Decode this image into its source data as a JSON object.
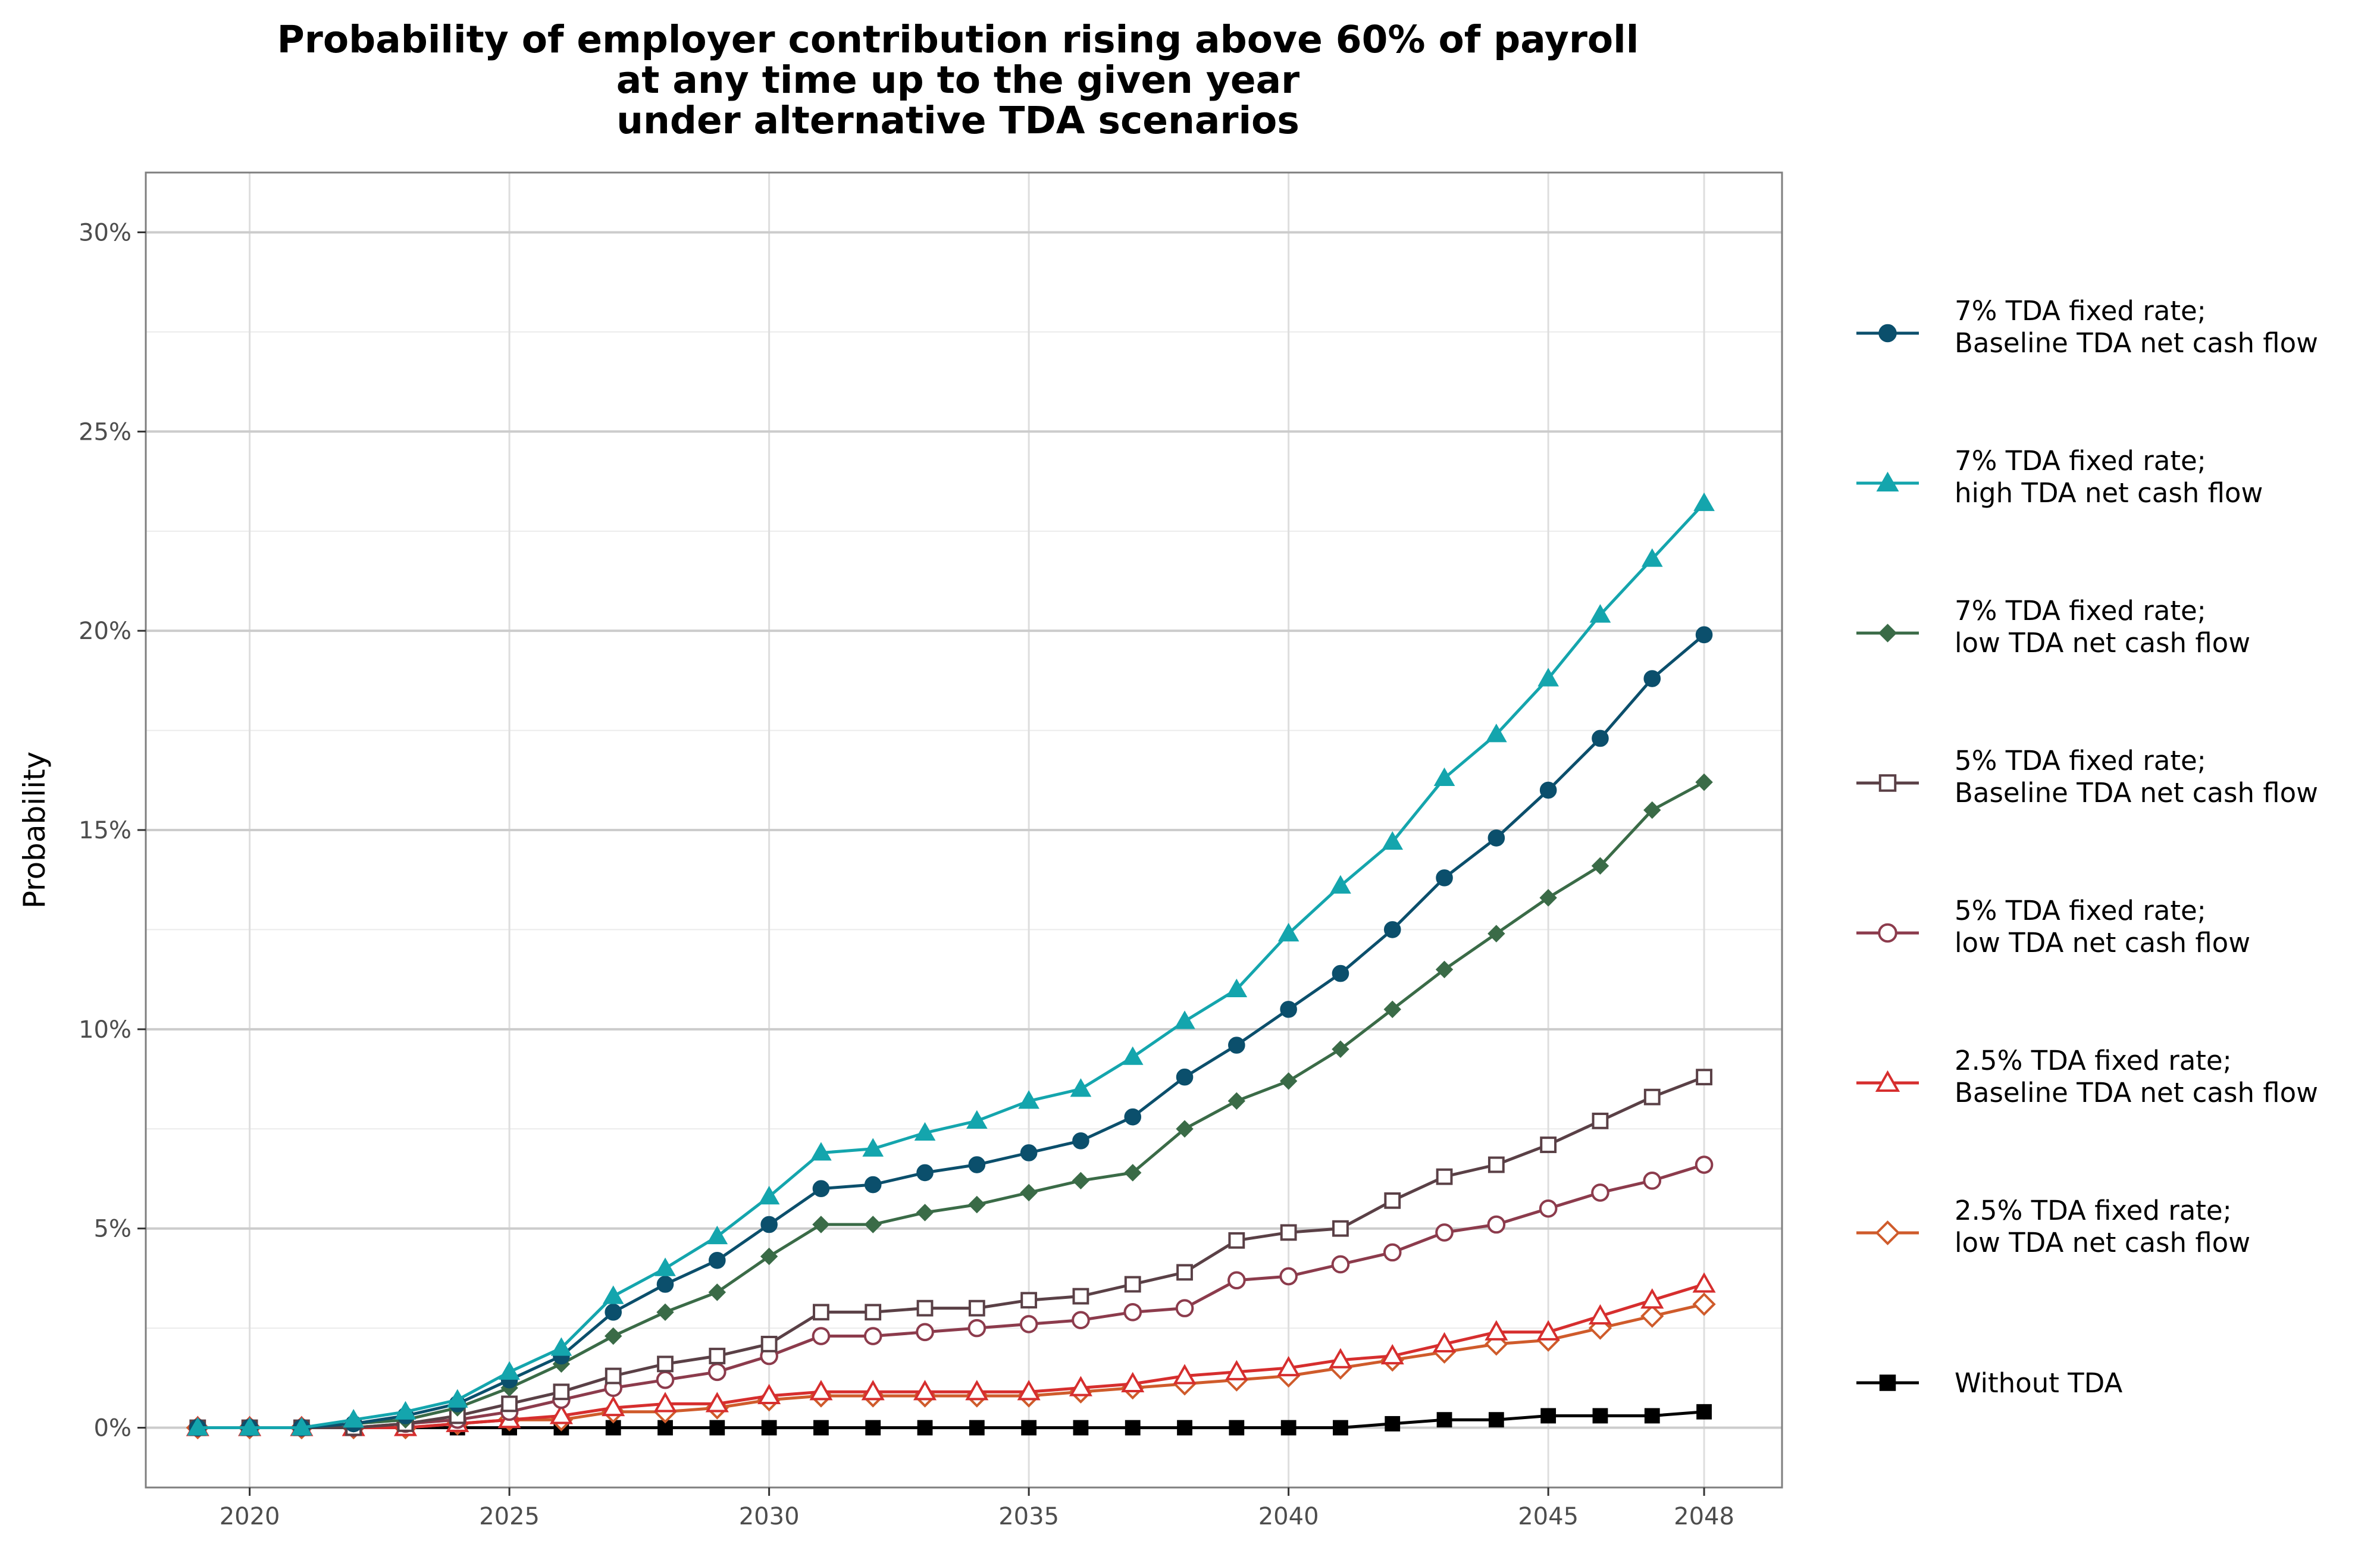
{
  "chart_data": {
    "type": "line",
    "title": [
      "Probability of employer contribution rising above 60% of payroll",
      "at any time up to the given year",
      "under alternative TDA scenarios"
    ],
    "xlabel": "",
    "ylabel": "Probability",
    "xlim": [
      2018,
      2049.5
    ],
    "ylim": [
      -1.5,
      31.5
    ],
    "x_ticks": [
      2020,
      2025,
      2030,
      2035,
      2040,
      2045,
      2048
    ],
    "y_ticks": [
      0,
      5,
      10,
      15,
      20,
      25,
      30
    ],
    "y_tick_labels": [
      "0%",
      "5%",
      "10%",
      "15%",
      "20%",
      "25%",
      "30%"
    ],
    "grid": true,
    "legend_position": "right",
    "x": [
      2019,
      2020,
      2021,
      2022,
      2023,
      2024,
      2025,
      2026,
      2027,
      2028,
      2029,
      2030,
      2031,
      2032,
      2033,
      2034,
      2035,
      2036,
      2037,
      2038,
      2039,
      2040,
      2041,
      2042,
      2043,
      2044,
      2045,
      2046,
      2047,
      2048
    ],
    "series": [
      {
        "name": [
          "7% TDA fixed rate;",
          "Baseline TDA net cash flow"
        ],
        "color": "#0b4f6c",
        "marker": "circle-filled",
        "values": [
          0,
          0,
          0,
          0.1,
          0.3,
          0.6,
          1.2,
          1.8,
          2.9,
          3.6,
          4.2,
          5.1,
          6.0,
          6.1,
          6.4,
          6.6,
          6.9,
          7.2,
          7.8,
          8.8,
          9.6,
          10.5,
          11.4,
          12.5,
          13.8,
          14.8,
          16.0,
          17.3,
          18.8,
          19.9
        ]
      },
      {
        "name": [
          "7% TDA fixed rate;",
          "high TDA net cash flow"
        ],
        "color": "#14a5ad",
        "marker": "triangle-filled",
        "values": [
          0,
          0,
          0,
          0.2,
          0.4,
          0.7,
          1.4,
          2.0,
          3.3,
          4.0,
          4.8,
          5.8,
          6.9,
          7.0,
          7.4,
          7.7,
          8.2,
          8.5,
          9.3,
          10.2,
          11.0,
          12.4,
          13.6,
          14.7,
          16.3,
          17.4,
          18.8,
          20.4,
          21.8,
          23.2
        ]
      },
      {
        "name": [
          "7% TDA fixed rate;",
          "low  TDA net cash flow"
        ],
        "color": "#3a6b47",
        "marker": "diamond-filled",
        "values": [
          0,
          0,
          0,
          0.1,
          0.2,
          0.5,
          1.0,
          1.6,
          2.3,
          2.9,
          3.4,
          4.3,
          5.1,
          5.1,
          5.4,
          5.6,
          5.9,
          6.2,
          6.4,
          7.5,
          8.2,
          8.7,
          9.5,
          10.5,
          11.5,
          12.4,
          13.3,
          14.1,
          15.5,
          16.2
        ]
      },
      {
        "name": [
          "5% TDA fixed rate;",
          "Baseline TDA net cash flow"
        ],
        "color": "#5a4046",
        "marker": "square-open",
        "values": [
          0,
          0,
          0,
          0,
          0.1,
          0.3,
          0.6,
          0.9,
          1.3,
          1.6,
          1.8,
          2.1,
          2.9,
          2.9,
          3.0,
          3.0,
          3.2,
          3.3,
          3.6,
          3.9,
          4.7,
          4.9,
          5.0,
          5.7,
          6.3,
          6.6,
          7.1,
          7.7,
          8.3,
          8.8
        ]
      },
      {
        "name": [
          "5% TDA fixed rate;",
          "low TDA net cash flow"
        ],
        "color": "#8c3b4c",
        "marker": "circle-open",
        "values": [
          0,
          0,
          0,
          0,
          0.1,
          0.2,
          0.4,
          0.7,
          1.0,
          1.2,
          1.4,
          1.8,
          2.3,
          2.3,
          2.4,
          2.5,
          2.6,
          2.7,
          2.9,
          3.0,
          3.7,
          3.8,
          4.1,
          4.4,
          4.9,
          5.1,
          5.5,
          5.9,
          6.2,
          6.6
        ]
      },
      {
        "name": [
          "2.5% TDA fixed rate;",
          "Baseline TDA net cash flow"
        ],
        "color": "#d62e2e",
        "marker": "triangle-open",
        "values": [
          0,
          0,
          0,
          0,
          0,
          0.1,
          0.2,
          0.3,
          0.5,
          0.6,
          0.6,
          0.8,
          0.9,
          0.9,
          0.9,
          0.9,
          0.9,
          1.0,
          1.1,
          1.3,
          1.4,
          1.5,
          1.7,
          1.8,
          2.1,
          2.4,
          2.4,
          2.8,
          3.2,
          3.6
        ]
      },
      {
        "name": [
          "2.5% TDA fixed rate;",
          "low TDA net cash flow"
        ],
        "color": "#cf5b2b",
        "marker": "diamond-open",
        "values": [
          0,
          0,
          0,
          0,
          0,
          0.1,
          0.2,
          0.2,
          0.4,
          0.4,
          0.5,
          0.7,
          0.8,
          0.8,
          0.8,
          0.8,
          0.8,
          0.9,
          1.0,
          1.1,
          1.2,
          1.3,
          1.5,
          1.7,
          1.9,
          2.1,
          2.2,
          2.5,
          2.8,
          3.1
        ]
      },
      {
        "name": [
          "Without TDA"
        ],
        "color": "#000000",
        "marker": "square-filled",
        "values": [
          0,
          0,
          0,
          0,
          0,
          0,
          0,
          0,
          0,
          0,
          0,
          0,
          0,
          0,
          0,
          0,
          0,
          0,
          0,
          0,
          0,
          0,
          0,
          0.1,
          0.2,
          0.2,
          0.3,
          0.3,
          0.3,
          0.4
        ]
      }
    ]
  }
}
